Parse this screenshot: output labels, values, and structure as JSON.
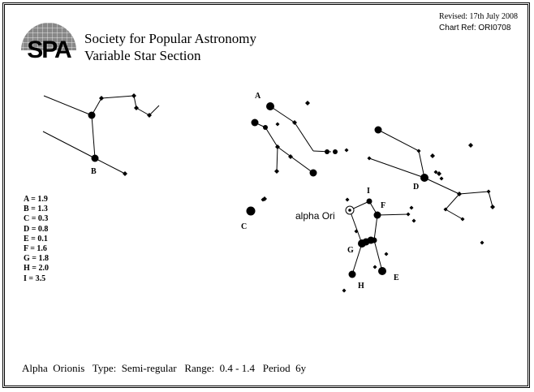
{
  "header": {
    "society": "Society for Popular Astronomy",
    "section": "Variable Star Section",
    "revised": "Revised: 17th July 2008",
    "chart_ref": "Chart Ref: ORI0708",
    "logo_text": "SPA"
  },
  "target": {
    "label": "alpha  Ori"
  },
  "comparison_stars": [
    {
      "letter": "A",
      "text": "A = 1.9"
    },
    {
      "letter": "B",
      "text": "B = 1.3"
    },
    {
      "letter": "C",
      "text": "C = 0.3"
    },
    {
      "letter": "D",
      "text": "D = 0.8"
    },
    {
      "letter": "E",
      "text": "E = 0.1"
    },
    {
      "letter": "F",
      "text": "F = 1.6"
    },
    {
      "letter": "G",
      "text": "G = 1.8"
    },
    {
      "letter": "H",
      "text": "H = 2.0"
    },
    {
      "letter": "I",
      "text": "I = 3.5"
    }
  ],
  "footer": {
    "info": "Alpha  Orionis   Type:  Semi-regular   Range:  0.4 - 1.4   Period  6y"
  },
  "chart_labels": {
    "A": "A",
    "B": "B",
    "C": "C",
    "D": "D",
    "E": "E",
    "F": "F",
    "G": "G",
    "H": "H",
    "I": "I"
  }
}
